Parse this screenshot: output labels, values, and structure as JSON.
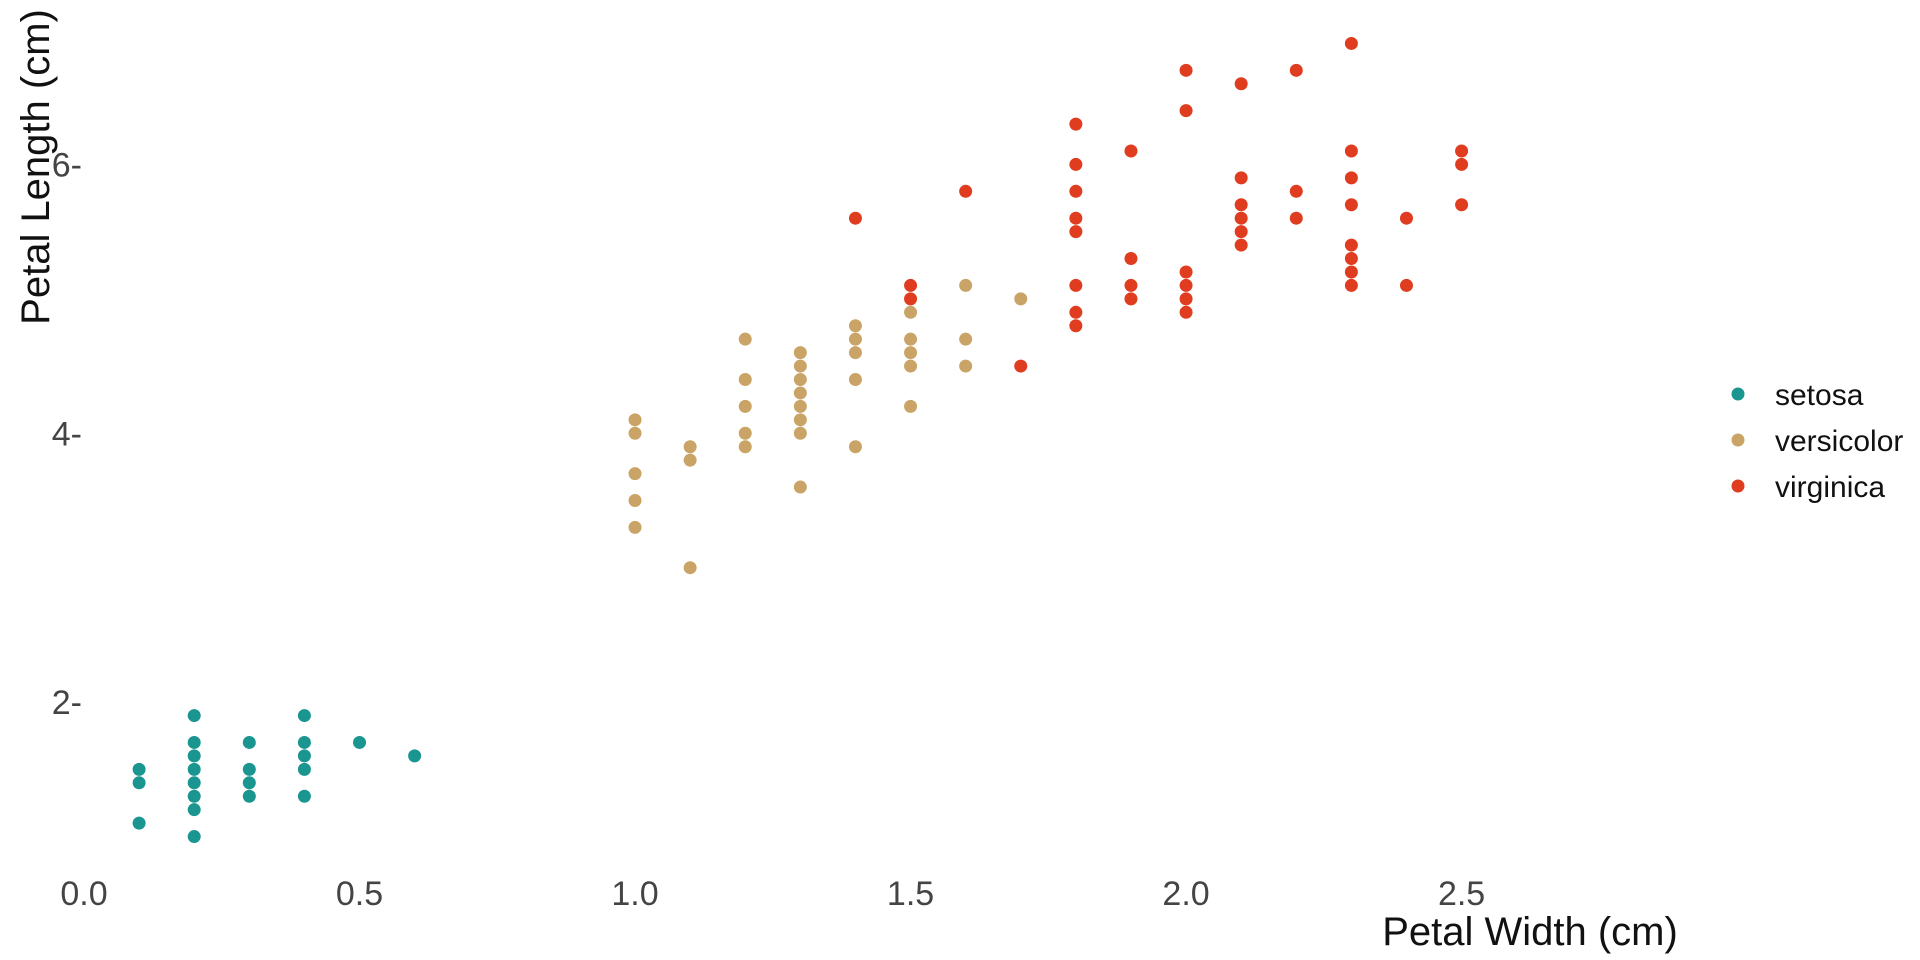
{
  "chart_data": {
    "type": "scatter",
    "xlabel": "Petal Width (cm)",
    "ylabel": "Petal Length (cm)",
    "xlim": [
      0,
      2.9
    ],
    "ylim": [
      0.9,
      7
    ],
    "x_ticks": [
      0,
      0.5,
      1,
      1.5,
      2,
      2.5
    ],
    "x_tick_labels": [
      "0.0",
      "0.5",
      "1.0",
      "1.5",
      "2.0",
      "2.5"
    ],
    "y_ticks": [
      2,
      4,
      6
    ],
    "y_tick_labels": [
      "2-",
      "4-",
      "6-"
    ],
    "grid": false,
    "legend_position": "right",
    "series": [
      {
        "name": "setosa",
        "color": "#1a9590",
        "points": [
          [
            0.1,
            1.1
          ],
          [
            0.1,
            1.4
          ],
          [
            0.1,
            1.5
          ],
          [
            0.2,
            1.0
          ],
          [
            0.2,
            1.2
          ],
          [
            0.2,
            1.3
          ],
          [
            0.2,
            1.4
          ],
          [
            0.2,
            1.5
          ],
          [
            0.2,
            1.6
          ],
          [
            0.2,
            1.7
          ],
          [
            0.2,
            1.9
          ],
          [
            0.3,
            1.3
          ],
          [
            0.3,
            1.4
          ],
          [
            0.3,
            1.5
          ],
          [
            0.3,
            1.7
          ],
          [
            0.4,
            1.3
          ],
          [
            0.4,
            1.5
          ],
          [
            0.4,
            1.6
          ],
          [
            0.4,
            1.7
          ],
          [
            0.4,
            1.9
          ],
          [
            0.5,
            1.7
          ],
          [
            0.6,
            1.6
          ]
        ]
      },
      {
        "name": "versicolor",
        "color": "#c9a466",
        "points": [
          [
            1.0,
            3.3
          ],
          [
            1.0,
            3.5
          ],
          [
            1.0,
            3.7
          ],
          [
            1.0,
            4.0
          ],
          [
            1.0,
            4.1
          ],
          [
            1.1,
            3.0
          ],
          [
            1.1,
            3.8
          ],
          [
            1.1,
            3.9
          ],
          [
            1.2,
            3.9
          ],
          [
            1.2,
            4.0
          ],
          [
            1.2,
            4.2
          ],
          [
            1.2,
            4.4
          ],
          [
            1.2,
            4.7
          ],
          [
            1.3,
            3.6
          ],
          [
            1.3,
            4.0
          ],
          [
            1.3,
            4.1
          ],
          [
            1.3,
            4.2
          ],
          [
            1.3,
            4.3
          ],
          [
            1.3,
            4.4
          ],
          [
            1.3,
            4.5
          ],
          [
            1.3,
            4.6
          ],
          [
            1.4,
            3.9
          ],
          [
            1.4,
            4.4
          ],
          [
            1.4,
            4.6
          ],
          [
            1.4,
            4.7
          ],
          [
            1.4,
            4.8
          ],
          [
            1.5,
            4.2
          ],
          [
            1.5,
            4.5
          ],
          [
            1.5,
            4.6
          ],
          [
            1.5,
            4.7
          ],
          [
            1.5,
            4.9
          ],
          [
            1.6,
            4.5
          ],
          [
            1.6,
            4.7
          ],
          [
            1.6,
            5.1
          ],
          [
            1.7,
            5.0
          ]
        ]
      },
      {
        "name": "virginica",
        "color": "#e03c1f",
        "points": [
          [
            1.4,
            5.6
          ],
          [
            1.5,
            5.0
          ],
          [
            1.5,
            5.1
          ],
          [
            1.6,
            5.8
          ],
          [
            1.7,
            4.5
          ],
          [
            1.8,
            4.8
          ],
          [
            1.8,
            4.9
          ],
          [
            1.8,
            5.1
          ],
          [
            1.8,
            5.5
          ],
          [
            1.8,
            5.6
          ],
          [
            1.8,
            5.8
          ],
          [
            1.8,
            6.0
          ],
          [
            1.8,
            6.3
          ],
          [
            1.9,
            5.0
          ],
          [
            1.9,
            5.1
          ],
          [
            1.9,
            5.3
          ],
          [
            1.9,
            6.1
          ],
          [
            2.0,
            4.9
          ],
          [
            2.0,
            5.0
          ],
          [
            2.0,
            5.1
          ],
          [
            2.0,
            5.2
          ],
          [
            2.0,
            6.4
          ],
          [
            2.0,
            6.7
          ],
          [
            2.1,
            5.4
          ],
          [
            2.1,
            5.5
          ],
          [
            2.1,
            5.6
          ],
          [
            2.1,
            5.7
          ],
          [
            2.1,
            5.9
          ],
          [
            2.1,
            6.6
          ],
          [
            2.2,
            5.6
          ],
          [
            2.2,
            5.8
          ],
          [
            2.2,
            6.7
          ],
          [
            2.3,
            5.1
          ],
          [
            2.3,
            5.2
          ],
          [
            2.3,
            5.3
          ],
          [
            2.3,
            5.4
          ],
          [
            2.3,
            5.7
          ],
          [
            2.3,
            5.9
          ],
          [
            2.3,
            6.1
          ],
          [
            2.3,
            6.9
          ],
          [
            2.4,
            5.1
          ],
          [
            2.4,
            5.6
          ],
          [
            2.5,
            5.7
          ],
          [
            2.5,
            6.0
          ],
          [
            2.5,
            6.1
          ]
        ]
      }
    ]
  }
}
